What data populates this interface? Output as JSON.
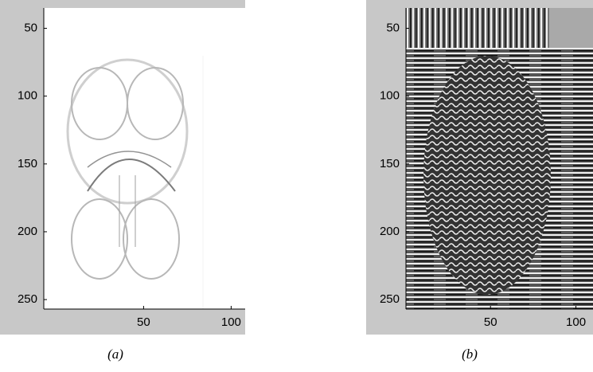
{
  "chart_data": [
    {
      "type": "image",
      "caption": "(a)",
      "xlim": [
        -7,
        108
      ],
      "ylim": [
        35,
        257
      ],
      "xticks": [
        50,
        100
      ],
      "yticks": [
        50,
        100,
        150,
        200,
        250
      ]
    },
    {
      "type": "image",
      "caption": "(b)",
      "xlim": [
        0.5,
        110
      ],
      "ylim": [
        35,
        257
      ],
      "xticks": [
        50,
        100
      ],
      "yticks": [
        50,
        100,
        150,
        200,
        250
      ]
    }
  ]
}
